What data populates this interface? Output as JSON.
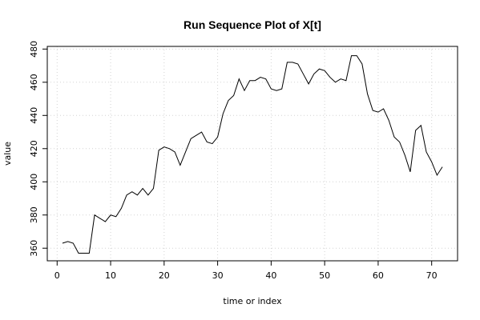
{
  "chart_data": {
    "type": "line",
    "title": "Run Sequence Plot of X[t]",
    "xlabel": "time or index",
    "ylabel": "value",
    "xlim": [
      -1.84,
      74.84
    ],
    "ylim": [
      352.4,
      481.6
    ],
    "xticks": [
      0,
      10,
      20,
      30,
      40,
      50,
      60,
      70
    ],
    "yticks": [
      360,
      380,
      400,
      420,
      440,
      460,
      480
    ],
    "grid": true,
    "colors": {
      "line": "#000000",
      "grid": "#d3d3d3",
      "axis": "#000000"
    },
    "series": [
      {
        "x": [
          1,
          2,
          3,
          4,
          5,
          6,
          7,
          8,
          9,
          10,
          11,
          12,
          13,
          14,
          15,
          16,
          17,
          18,
          19,
          20,
          21,
          22,
          23,
          24,
          25,
          26,
          27,
          28,
          29,
          30,
          31,
          32,
          33,
          34,
          35,
          36,
          37,
          38,
          39,
          40,
          41,
          42,
          43,
          44,
          45,
          46,
          47,
          48,
          49,
          50,
          51,
          52,
          53,
          54,
          55,
          56,
          57,
          58,
          59,
          60,
          61,
          62,
          63,
          64,
          65,
          66,
          67,
          68,
          69,
          70,
          71,
          72
        ],
        "values": [
          363,
          364,
          363,
          357,
          357,
          357,
          380,
          378,
          376,
          380,
          379,
          384,
          392,
          394,
          392,
          396,
          392,
          396,
          419,
          421,
          420,
          418,
          410,
          418,
          426,
          428,
          430,
          424,
          423,
          427,
          441,
          449,
          452,
          462,
          455,
          461,
          461,
          463,
          462,
          456,
          455,
          456,
          472,
          472,
          471,
          465,
          459,
          465,
          468,
          467,
          463,
          460,
          462,
          461,
          476,
          476,
          471,
          453,
          443,
          442,
          444,
          437,
          427,
          424,
          416,
          406,
          431,
          434,
          418,
          412,
          404,
          409
        ]
      }
    ]
  }
}
